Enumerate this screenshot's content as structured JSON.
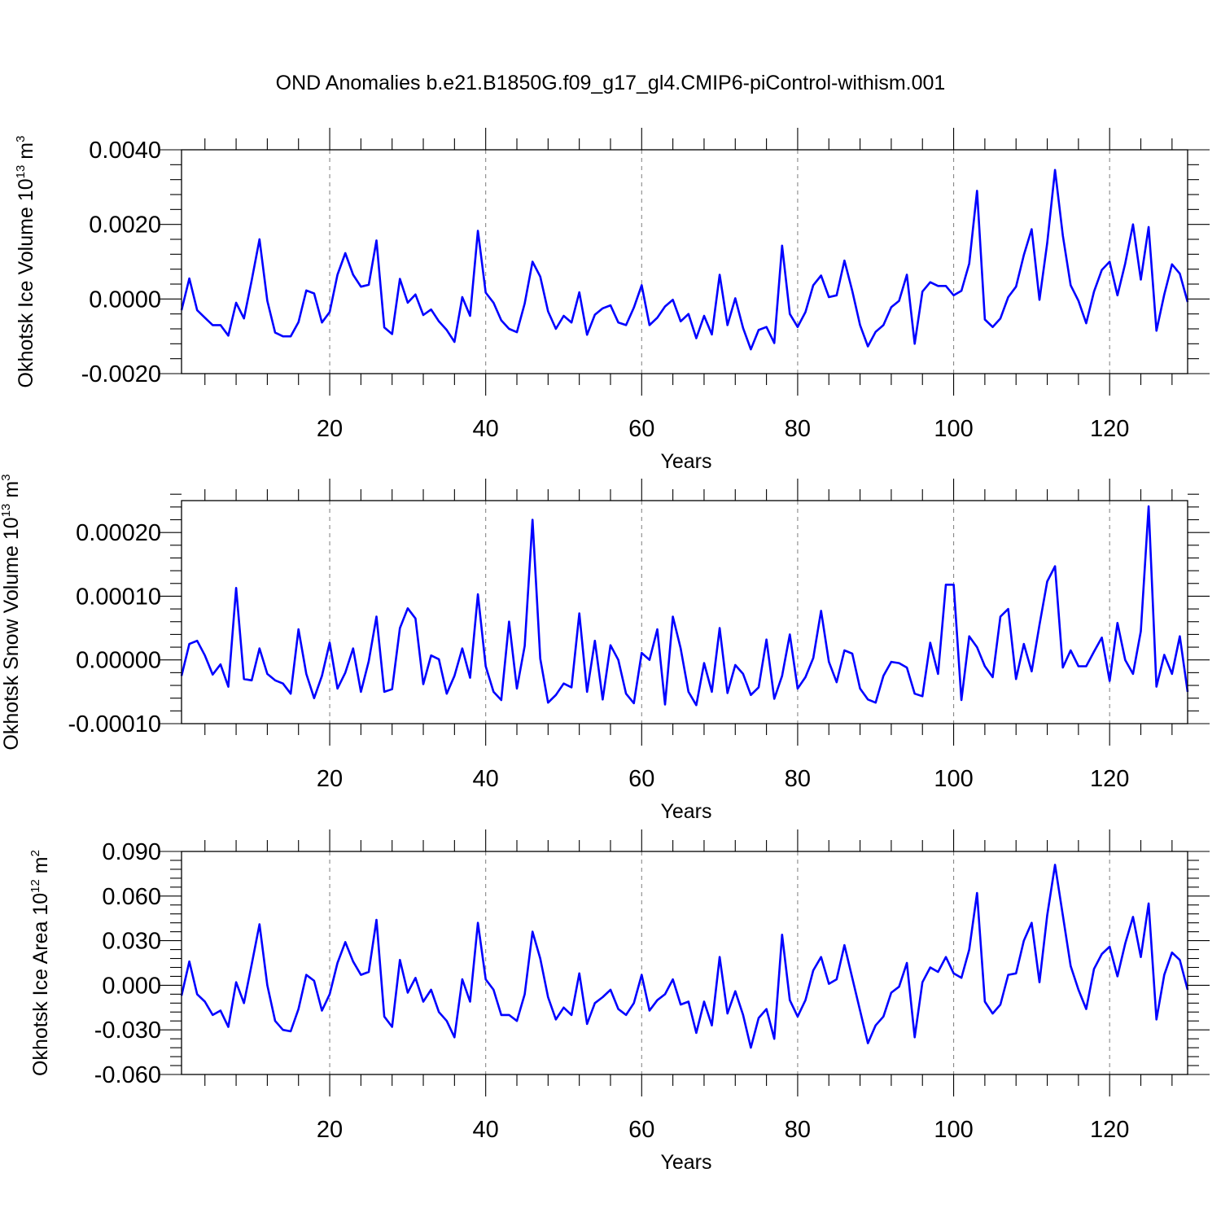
{
  "title": "OND Anomalies b.e21.B1850G.f09_g17_gl4.CMIP6-piControl-withism.001",
  "colors": {
    "line": "#0000ff",
    "grid": "#888888",
    "frame": "#000000"
  },
  "chart_data": [
    {
      "type": "line",
      "ylabel": "Okhotsk Ice Volume 10",
      "ylabel_exp": "13",
      "ylabel_unit": "m",
      "ylabel_unit_exp": "3",
      "xlabel": "Years",
      "xlim": [
        1,
        130
      ],
      "ylim": [
        -0.002,
        0.004
      ],
      "xticks": [
        20,
        40,
        60,
        80,
        100,
        120
      ],
      "xtick_labels": [
        "20",
        "40",
        "60",
        "80",
        "100",
        "120"
      ],
      "yticks": [
        -0.002,
        0.0,
        0.002,
        0.004
      ],
      "ytick_labels": [
        "-0.0020",
        "0.0000",
        "0.0020",
        "0.0040"
      ],
      "yminor_step": 0.0004,
      "xminor_step": 4,
      "grid": "x-major-dashed",
      "values": [
        -0.0003,
        0.00055,
        -0.0003,
        -0.0005,
        -0.0007,
        -0.0007,
        -0.00098,
        -0.0001,
        -0.00052,
        0.0005,
        0.0016,
        -5e-05,
        -0.0009,
        -0.001,
        -0.001,
        -0.00062,
        0.00023,
        0.00015,
        -0.00063,
        -0.00035,
        0.00065,
        0.00123,
        0.00065,
        0.00033,
        0.00038,
        0.00157,
        -0.00076,
        -0.00094,
        0.00054,
        -0.0001,
        0.00012,
        -0.00043,
        -0.00028,
        -0.0006,
        -0.00083,
        -0.00115,
        5e-05,
        -0.00045,
        0.00183,
        0.00017,
        -0.0001,
        -0.00057,
        -0.0008,
        -0.00089,
        -0.00012,
        0.001,
        0.0006,
        -0.00033,
        -0.0008,
        -0.00045,
        -0.00063,
        0.00018,
        -0.00096,
        -0.00042,
        -0.00025,
        -0.00017,
        -0.00063,
        -0.0007,
        -0.00023,
        0.00037,
        -0.0007,
        -0.0005,
        -0.0002,
        -2e-05,
        -0.0006,
        -0.0004,
        -0.00105,
        -0.00045,
        -0.00095,
        0.00065,
        -0.0007,
        2e-05,
        -0.00078,
        -0.00135,
        -0.00083,
        -0.00075,
        -0.00118,
        0.00143,
        -0.0004,
        -0.00075,
        -0.00035,
        0.00037,
        0.00063,
        5e-05,
        0.0001,
        0.00103,
        0.00022,
        -0.0007,
        -0.00127,
        -0.00088,
        -0.0007,
        -0.00022,
        -5e-05,
        0.00065,
        -0.0012,
        0.0002,
        0.00045,
        0.00035,
        0.00035,
        0.0001,
        0.00022,
        0.00095,
        0.0029,
        -0.00055,
        -0.00075,
        -0.00052,
        5e-05,
        0.00033,
        0.00118,
        0.00187,
        -2e-05,
        0.0015,
        0.00346,
        0.0017,
        0.00037,
        -5e-05,
        -0.00065,
        0.0002,
        0.00078,
        0.001,
        0.0001,
        0.00095,
        0.002,
        0.00052,
        0.00193,
        -0.00085,
        0.00012,
        0.00093,
        0.00068,
        -8e-05
      ]
    },
    {
      "type": "line",
      "ylabel": "Okhotsk Snow Volume 10",
      "ylabel_exp": "13",
      "ylabel_unit": "m",
      "ylabel_unit_exp": "3",
      "xlabel": "Years",
      "xlim": [
        1,
        130
      ],
      "ylim": [
        -0.0001,
        0.00025
      ],
      "xticks": [
        20,
        40,
        60,
        80,
        100,
        120
      ],
      "xtick_labels": [
        "20",
        "40",
        "60",
        "80",
        "100",
        "120"
      ],
      "yticks": [
        -0.0001,
        0.0,
        0.0001,
        0.0002
      ],
      "ytick_labels": [
        "-0.00010",
        "0.00000",
        "0.00010",
        "0.00020"
      ],
      "yminor_step": 2e-05,
      "xminor_step": 4,
      "grid": "x-major-dashed",
      "values": [
        -2.5e-05,
        2.5e-05,
        3e-05,
        7e-06,
        -2.3e-05,
        -7e-06,
        -4.2e-05,
        0.000113,
        -3e-05,
        -3.2e-05,
        1.8e-05,
        -2.2e-05,
        -3.2e-05,
        -3.7e-05,
        -5.3e-05,
        4.8e-05,
        -2.2e-05,
        -6e-05,
        -2.5e-05,
        2.7e-05,
        -4.5e-05,
        -2e-05,
        1.8e-05,
        -5e-05,
        -2e-06,
        6.8e-05,
        -5e-05,
        -4.6e-05,
        5e-05,
        8.1e-05,
        6.5e-05,
        -3.8e-05,
        7e-06,
        1e-06,
        -5.3e-05,
        -2.5e-05,
        1.8e-05,
        -2.8e-05,
        0.000103,
        -1e-05,
        -5e-05,
        -6.3e-05,
        6e-05,
        -4.5e-05,
        2.2e-05,
        0.00022,
        2e-06,
        -6.7e-05,
        -5.5e-05,
        -3.7e-05,
        -4.3e-05,
        7.3e-05,
        -5e-05,
        3e-05,
        -6.2e-05,
        2.3e-05,
        0.0,
        -5.3e-05,
        -6.8e-05,
        1.1e-05,
        0.0,
        4.8e-05,
        -7e-05,
        6.8e-05,
        1.8e-05,
        -5e-05,
        -7.1e-05,
        -5e-06,
        -5e-05,
        5e-05,
        -5.2e-05,
        -8e-06,
        -2.2e-05,
        -5.5e-05,
        -4.3e-05,
        3.2e-05,
        -6.1e-05,
        -2.5e-05,
        4e-05,
        -4.5e-05,
        -2.7e-05,
        3e-06,
        7.7e-05,
        -3e-06,
        -3.5e-05,
        1.5e-05,
        1e-05,
        -4.5e-05,
        -6.2e-05,
        -6.7e-05,
        -2.5e-05,
        -3e-06,
        -5e-06,
        -1.2e-05,
        -5.3e-05,
        -5.7e-05,
        2.7e-05,
        -2.2e-05,
        0.000118,
        0.000118,
        -6.3e-05,
        3.7e-05,
        2e-05,
        -1e-05,
        -2.7e-05,
        6.8e-05,
        8e-05,
        -3e-05,
        2.5e-05,
        -1.8e-05,
        5.5e-05,
        0.000123,
        0.000147,
        -1.2e-05,
        1.5e-05,
        -1e-05,
        -1e-05,
        1.3e-05,
        3.5e-05,
        -3.3e-05,
        5.8e-05,
        0.0,
        -2.2e-05,
        4.5e-05,
        0.000241,
        -4.2e-05,
        8e-06,
        -2.2e-05,
        3.7e-05,
        -5e-05
      ]
    },
    {
      "type": "line",
      "ylabel": "Okhotsk Ice Area 10",
      "ylabel_exp": "12",
      "ylabel_unit": "m",
      "ylabel_unit_exp": "2",
      "xlabel": "Years",
      "xlim": [
        1,
        130
      ],
      "ylim": [
        -0.06,
        0.09
      ],
      "xticks": [
        20,
        40,
        60,
        80,
        100,
        120
      ],
      "xtick_labels": [
        "20",
        "40",
        "60",
        "80",
        "100",
        "120"
      ],
      "yticks": [
        -0.06,
        -0.03,
        0.0,
        0.03,
        0.06,
        0.09
      ],
      "ytick_labels": [
        "-0.060",
        "-0.030",
        "0.000",
        "0.030",
        "0.060",
        "0.090"
      ],
      "yminor_step": 0.006,
      "xminor_step": 4,
      "grid": "x-major-dashed",
      "values": [
        -0.007,
        0.016,
        -0.006,
        -0.011,
        -0.02,
        -0.017,
        -0.028,
        0.002,
        -0.012,
        0.014,
        0.041,
        0.0,
        -0.024,
        -0.03,
        -0.031,
        -0.016,
        0.007,
        0.003,
        -0.017,
        -0.006,
        0.015,
        0.029,
        0.016,
        0.007,
        0.009,
        0.044,
        -0.021,
        -0.028,
        0.017,
        -0.005,
        0.005,
        -0.011,
        -0.003,
        -0.018,
        -0.024,
        -0.035,
        0.004,
        -0.011,
        0.042,
        0.004,
        -0.003,
        -0.02,
        -0.02,
        -0.024,
        -0.006,
        0.036,
        0.018,
        -0.008,
        -0.023,
        -0.015,
        -0.02,
        0.008,
        -0.026,
        -0.012,
        -0.008,
        -0.003,
        -0.016,
        -0.02,
        -0.012,
        0.007,
        -0.017,
        -0.01,
        -0.006,
        0.004,
        -0.013,
        -0.011,
        -0.032,
        -0.011,
        -0.027,
        0.019,
        -0.019,
        -0.004,
        -0.02,
        -0.042,
        -0.022,
        -0.016,
        -0.036,
        0.034,
        -0.01,
        -0.021,
        -0.01,
        0.01,
        0.019,
        0.001,
        0.004,
        0.027,
        0.005,
        -0.017,
        -0.039,
        -0.027,
        -0.021,
        -0.005,
        -0.001,
        0.015,
        -0.035,
        0.002,
        0.012,
        0.009,
        0.019,
        0.008,
        0.005,
        0.024,
        0.062,
        -0.011,
        -0.019,
        -0.013,
        0.007,
        0.008,
        0.03,
        0.042,
        0.002,
        0.047,
        0.081,
        0.047,
        0.013,
        -0.003,
        -0.016,
        0.011,
        0.021,
        0.026,
        0.006,
        0.028,
        0.046,
        0.019,
        0.055,
        -0.023,
        0.007,
        0.022,
        0.017,
        -0.003
      ]
    }
  ]
}
